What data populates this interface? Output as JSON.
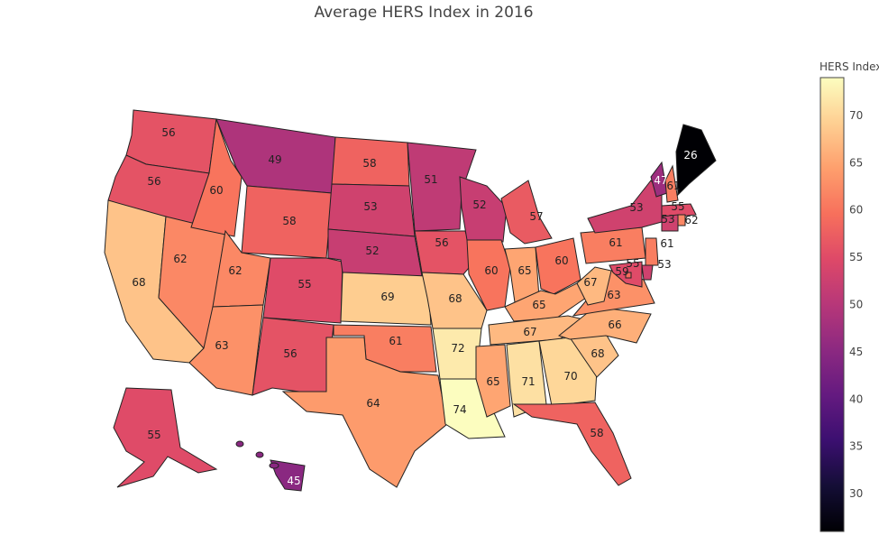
{
  "title": "Average HERS Index in 2016",
  "colorbar": {
    "title": "HERS Index",
    "min": 26,
    "max": 74,
    "ticks": [
      30,
      35,
      40,
      45,
      50,
      55,
      60,
      65,
      70
    ]
  },
  "chart_data": {
    "type": "choropleth",
    "title": "Average HERS Index in 2016",
    "colorscale": "magma",
    "colorbar_title": "HERS Index",
    "values": {
      "WA": 56,
      "OR": 56,
      "CA": 68,
      "NV": 62,
      "ID": 60,
      "MT": 49,
      "WY": 58,
      "UT": 62,
      "AZ": 63,
      "CO": 55,
      "NM": 56,
      "ND": 58,
      "SD": 53,
      "NE": 52,
      "KS": 69,
      "OK": 61,
      "TX": 64,
      "MN": 51,
      "IA": 56,
      "MO": 68,
      "AR": 72,
      "LA": 74,
      "WI": 52,
      "IL": 60,
      "MI": 57,
      "IN": 65,
      "OH": 60,
      "KY": 65,
      "TN": 67,
      "MS": 65,
      "AL": 71,
      "GA": 70,
      "FL": 58,
      "SC": 68,
      "NC": 66,
      "VA": 63,
      "WV": 67,
      "PA": 61,
      "NY": 53,
      "VT": 47,
      "NH": 61,
      "ME": 26,
      "MA": 55,
      "CT": 53,
      "RI": 62,
      "NJ": 61,
      "DE": 53,
      "MD": 55,
      "DC": 59,
      "AK": 55,
      "HI": 45
    }
  }
}
